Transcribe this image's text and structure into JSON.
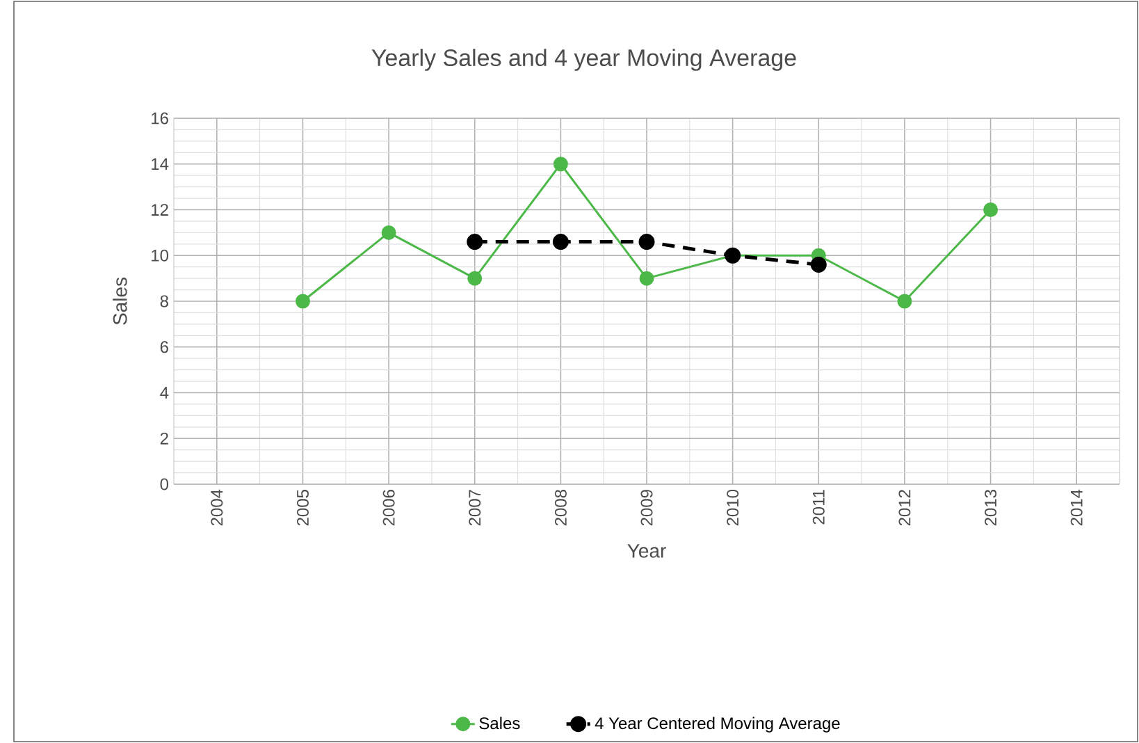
{
  "chart_data": {
    "type": "line",
    "title": "Yearly Sales and 4 year Moving Average",
    "xlabel": "Year",
    "ylabel": "Sales",
    "categories": [
      "2004",
      "2005",
      "2006",
      "2007",
      "2008",
      "2009",
      "2010",
      "2011",
      "2012",
      "2013",
      "2014"
    ],
    "series": [
      {
        "name": "Sales",
        "color": "#4cb848",
        "marker": "circle",
        "line_style": "solid",
        "values": [
          null,
          8,
          11,
          9,
          14,
          9,
          10,
          10,
          8,
          12,
          null
        ]
      },
      {
        "name": "4 Year Centered Moving Average",
        "color": "#000000",
        "marker": "circle",
        "line_style": "dashed",
        "values": [
          null,
          null,
          null,
          10.6,
          10.6,
          10.6,
          10,
          9.6,
          null,
          null,
          null
        ]
      }
    ],
    "ylim": [
      0,
      16
    ],
    "yticks": [
      0,
      2,
      4,
      6,
      8,
      10,
      12,
      14,
      16
    ],
    "grid": true,
    "legend": "bottom"
  }
}
